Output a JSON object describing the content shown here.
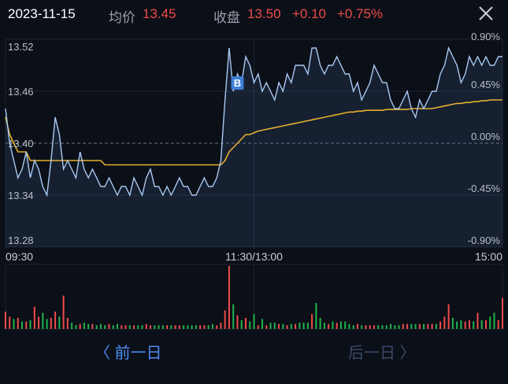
{
  "header": {
    "date": "2023-11-15",
    "avg_label": "均价",
    "avg_value": "13.45",
    "close_label": "收盘",
    "close_value": "13.50",
    "change": "+0.10",
    "change_pct": "+0.75%"
  },
  "icons": {
    "close": "close-icon",
    "buy_marker": "buy-marker-icon"
  },
  "colors": {
    "up": "#ef4b4b",
    "down": "#1fb54d",
    "price_line": "#a9c9f2",
    "avg_line": "#e6b02d",
    "accent": "#4f8ef7"
  },
  "chart_data": {
    "type": "line",
    "title": "",
    "prev_close": 13.4,
    "ylim": [
      13.28,
      13.52
    ],
    "price_tick_labels": [
      "13.52",
      "13.46",
      "13.40",
      "13.34",
      "13.28"
    ],
    "pct_tick_labels": [
      "0.90%",
      "0.45%",
      "0.00%",
      "-0.45%",
      "-0.90%"
    ],
    "x_tick_labels": [
      "09:30",
      "11:30/13:00",
      "15:00"
    ],
    "buy_marker": {
      "label": "B",
      "time_index": 56,
      "price": 13.47
    },
    "series": [
      {
        "role": "price",
        "values": [
          13.44,
          13.4,
          13.38,
          13.36,
          13.37,
          13.39,
          13.36,
          13.38,
          13.37,
          13.35,
          13.34,
          13.38,
          13.43,
          13.41,
          13.37,
          13.38,
          13.37,
          13.36,
          13.39,
          13.37,
          13.36,
          13.37,
          13.36,
          13.35,
          13.35,
          13.36,
          13.35,
          13.34,
          13.35,
          13.35,
          13.34,
          13.36,
          13.35,
          13.34,
          13.36,
          13.37,
          13.35,
          13.35,
          13.34,
          13.35,
          13.34,
          13.35,
          13.36,
          13.35,
          13.35,
          13.34,
          13.34,
          13.35,
          13.36,
          13.35,
          13.35,
          13.36,
          13.38,
          13.45,
          13.51,
          13.46,
          13.48,
          13.47,
          13.5,
          13.49,
          13.47,
          13.48,
          13.46,
          13.47,
          13.46,
          13.45,
          13.47,
          13.46,
          13.48,
          13.47,
          13.49,
          13.49,
          13.49,
          13.48,
          13.51,
          13.51,
          13.49,
          13.48,
          13.49,
          13.49,
          13.5,
          13.49,
          13.48,
          13.48,
          13.46,
          13.47,
          13.45,
          13.46,
          13.47,
          13.49,
          13.48,
          13.47,
          13.47,
          13.45,
          13.44,
          13.44,
          13.45,
          13.46,
          13.44,
          13.43,
          13.45,
          13.44,
          13.45,
          13.46,
          13.46,
          13.48,
          13.49,
          13.51,
          13.5,
          13.49,
          13.47,
          13.48,
          13.5,
          13.49,
          13.5,
          13.49,
          13.5,
          13.49,
          13.49,
          13.5,
          13.5
        ]
      },
      {
        "role": "average",
        "values": [
          13.43,
          13.41,
          13.4,
          13.39,
          13.39,
          13.39,
          13.38,
          13.38,
          13.38,
          13.38,
          13.38,
          13.38,
          13.38,
          13.38,
          13.38,
          13.38,
          13.38,
          13.38,
          13.38,
          13.38,
          13.38,
          13.38,
          13.38,
          13.38,
          13.375,
          13.375,
          13.375,
          13.375,
          13.375,
          13.375,
          13.375,
          13.375,
          13.375,
          13.375,
          13.375,
          13.375,
          13.375,
          13.375,
          13.375,
          13.375,
          13.375,
          13.375,
          13.375,
          13.375,
          13.375,
          13.375,
          13.375,
          13.375,
          13.375,
          13.375,
          13.375,
          13.375,
          13.375,
          13.38,
          13.39,
          13.395,
          13.4,
          13.405,
          13.41,
          13.41,
          13.412,
          13.414,
          13.415,
          13.416,
          13.417,
          13.418,
          13.419,
          13.42,
          13.421,
          13.422,
          13.423,
          13.424,
          13.425,
          13.426,
          13.427,
          13.428,
          13.429,
          13.43,
          13.431,
          13.432,
          13.433,
          13.434,
          13.435,
          13.436,
          13.436,
          13.437,
          13.437,
          13.438,
          13.438,
          13.438,
          13.438,
          13.438,
          13.439,
          13.439,
          13.439,
          13.439,
          13.439,
          13.439,
          13.44,
          13.44,
          13.44,
          13.44,
          13.44,
          13.44,
          13.441,
          13.442,
          13.443,
          13.444,
          13.445,
          13.446,
          13.446,
          13.447,
          13.447,
          13.448,
          13.448,
          13.449,
          13.449,
          13.45,
          13.45,
          13.45,
          13.45
        ]
      },
      {
        "role": "volume",
        "values": [
          14,
          10,
          8,
          9,
          6,
          6,
          7,
          18,
          10,
          13,
          8,
          9,
          14,
          10,
          27,
          9,
          5,
          3,
          4,
          5,
          4,
          4,
          3,
          4,
          3,
          4,
          3,
          4,
          3,
          3,
          3,
          3,
          3,
          3,
          4,
          3,
          3,
          3,
          3,
          3,
          3,
          3,
          3,
          3,
          3,
          3,
          3,
          3,
          3,
          3,
          4,
          3,
          5,
          15,
          51,
          20,
          11,
          7,
          9,
          6,
          12,
          3,
          8,
          3,
          5,
          5,
          4,
          4,
          3,
          4,
          4,
          5,
          5,
          5,
          12,
          21,
          9,
          5,
          4,
          6,
          5,
          6,
          6,
          4,
          3,
          4,
          3,
          3,
          3,
          3,
          3,
          3,
          3,
          4,
          3,
          3,
          4,
          4,
          4,
          4,
          4,
          4,
          4,
          4,
          4,
          6,
          10,
          20,
          9,
          6,
          7,
          6,
          7,
          6,
          13,
          7,
          7,
          10,
          13,
          7,
          25
        ],
        "directions": [
          1,
          1,
          -1,
          1,
          -1,
          1,
          -1,
          1,
          1,
          -1,
          -1,
          1,
          1,
          -1,
          1,
          1,
          -1,
          -1,
          1,
          -1,
          -1,
          1,
          -1,
          -1,
          -1,
          1,
          -1,
          -1,
          1,
          1,
          -1,
          1,
          -1,
          -1,
          1,
          1,
          -1,
          -1,
          -1,
          1,
          -1,
          1,
          1,
          -1,
          -1,
          -1,
          -1,
          1,
          1,
          -1,
          -1,
          1,
          1,
          1,
          1,
          -1,
          1,
          -1,
          1,
          -1,
          -1,
          1,
          -1,
          1,
          -1,
          -1,
          1,
          -1,
          1,
          -1,
          1,
          -1,
          -1,
          -1,
          1,
          -1,
          -1,
          -1,
          1,
          -1,
          1,
          -1,
          -1,
          -1,
          -1,
          1,
          -1,
          1,
          1,
          1,
          -1,
          -1,
          -1,
          -1,
          -1,
          -1,
          1,
          1,
          -1,
          -1,
          1,
          -1,
          1,
          1,
          -1,
          1,
          1,
          1,
          -1,
          -1,
          -1,
          1,
          1,
          -1,
          1,
          -1,
          1,
          -1,
          -1,
          1,
          1
        ]
      }
    ]
  },
  "nav": {
    "prev_label": "〈 前一日",
    "next_label": "后一日 〉"
  }
}
